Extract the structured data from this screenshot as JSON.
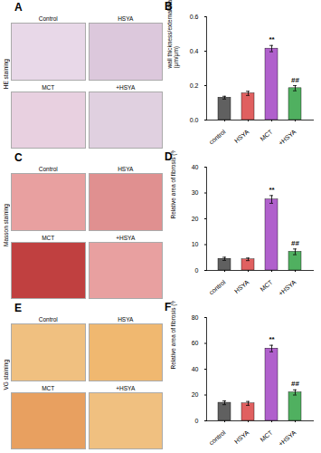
{
  "chart_data": [
    {
      "type": "image",
      "title": "A",
      "ylabel": "HE staining",
      "categories": [
        "Control",
        "HSYA",
        "MCT",
        "+HSYA"
      ],
      "colors": [
        "#e8d8e8",
        "#dcc8dc",
        "#e8d0e0",
        "#e0d0e0"
      ]
    },
    {
      "type": "bar",
      "title": "B",
      "categories": [
        "control",
        "HSYA",
        "MCT",
        "+HSYA"
      ],
      "values": [
        0.13,
        0.155,
        0.415,
        0.185
      ],
      "errors": [
        0.008,
        0.012,
        0.018,
        0.015
      ],
      "colors": [
        "#606060",
        "#e06060",
        "#b060cc",
        "#50b060"
      ],
      "ylabel": "wall thickness/external diameter\n(μm/μm)",
      "ylim": [
        0,
        0.6
      ],
      "yticks": [
        {
          "value": 0,
          "label": "0.0"
        },
        0.2,
        0.4,
        0.6
      ],
      "annotations": [
        {
          "category": "MCT",
          "text": "**"
        },
        {
          "category": "+HSYA",
          "text": "##"
        }
      ]
    },
    {
      "type": "image",
      "title": "C",
      "ylabel": "Masson staining",
      "categories": [
        "Control",
        "HSYA",
        "MCT",
        "+HSYA"
      ],
      "colors": [
        "#e8a0a0",
        "#e09090",
        "#c04040",
        "#e8a0a0"
      ]
    },
    {
      "type": "bar",
      "title": "D",
      "categories": [
        "control",
        "HSYA",
        "MCT",
        "+HSYA"
      ],
      "values": [
        4.5,
        4.3,
        27.5,
        7.2
      ],
      "errors": [
        0.6,
        0.5,
        1.5,
        1.1
      ],
      "colors": [
        "#606060",
        "#e06060",
        "#b060cc",
        "#50b060"
      ],
      "ylabel": "Relative area of fibrosis (%)",
      "ylim": [
        0,
        40
      ],
      "yticks": [
        0,
        10,
        20,
        30,
        40
      ],
      "annotations": [
        {
          "category": "MCT",
          "text": "**"
        },
        {
          "category": "+HSYA",
          "text": "##"
        }
      ]
    },
    {
      "type": "image",
      "title": "E",
      "ylabel": "VG staining",
      "categories": [
        "Control",
        "HSYA",
        "MCT",
        "+HSYA"
      ],
      "colors": [
        "#f0c080",
        "#f0b870",
        "#e8a060",
        "#f0c080"
      ]
    },
    {
      "type": "bar",
      "title": "F",
      "categories": [
        "control",
        "HSYA",
        "MCT",
        "+HSYA"
      ],
      "values": [
        14.0,
        13.5,
        56.0,
        22.0
      ],
      "errors": [
        1.5,
        1.5,
        2.5,
        2.0
      ],
      "colors": [
        "#606060",
        "#e06060",
        "#b060cc",
        "#50b060"
      ],
      "ylabel": "Relative area of fibrosis (%)",
      "ylim": [
        0,
        80
      ],
      "yticks": [
        0,
        20,
        40,
        60,
        80
      ],
      "annotations": [
        {
          "category": "MCT",
          "text": "**"
        },
        {
          "category": "+HSYA",
          "text": "##"
        }
      ]
    }
  ]
}
